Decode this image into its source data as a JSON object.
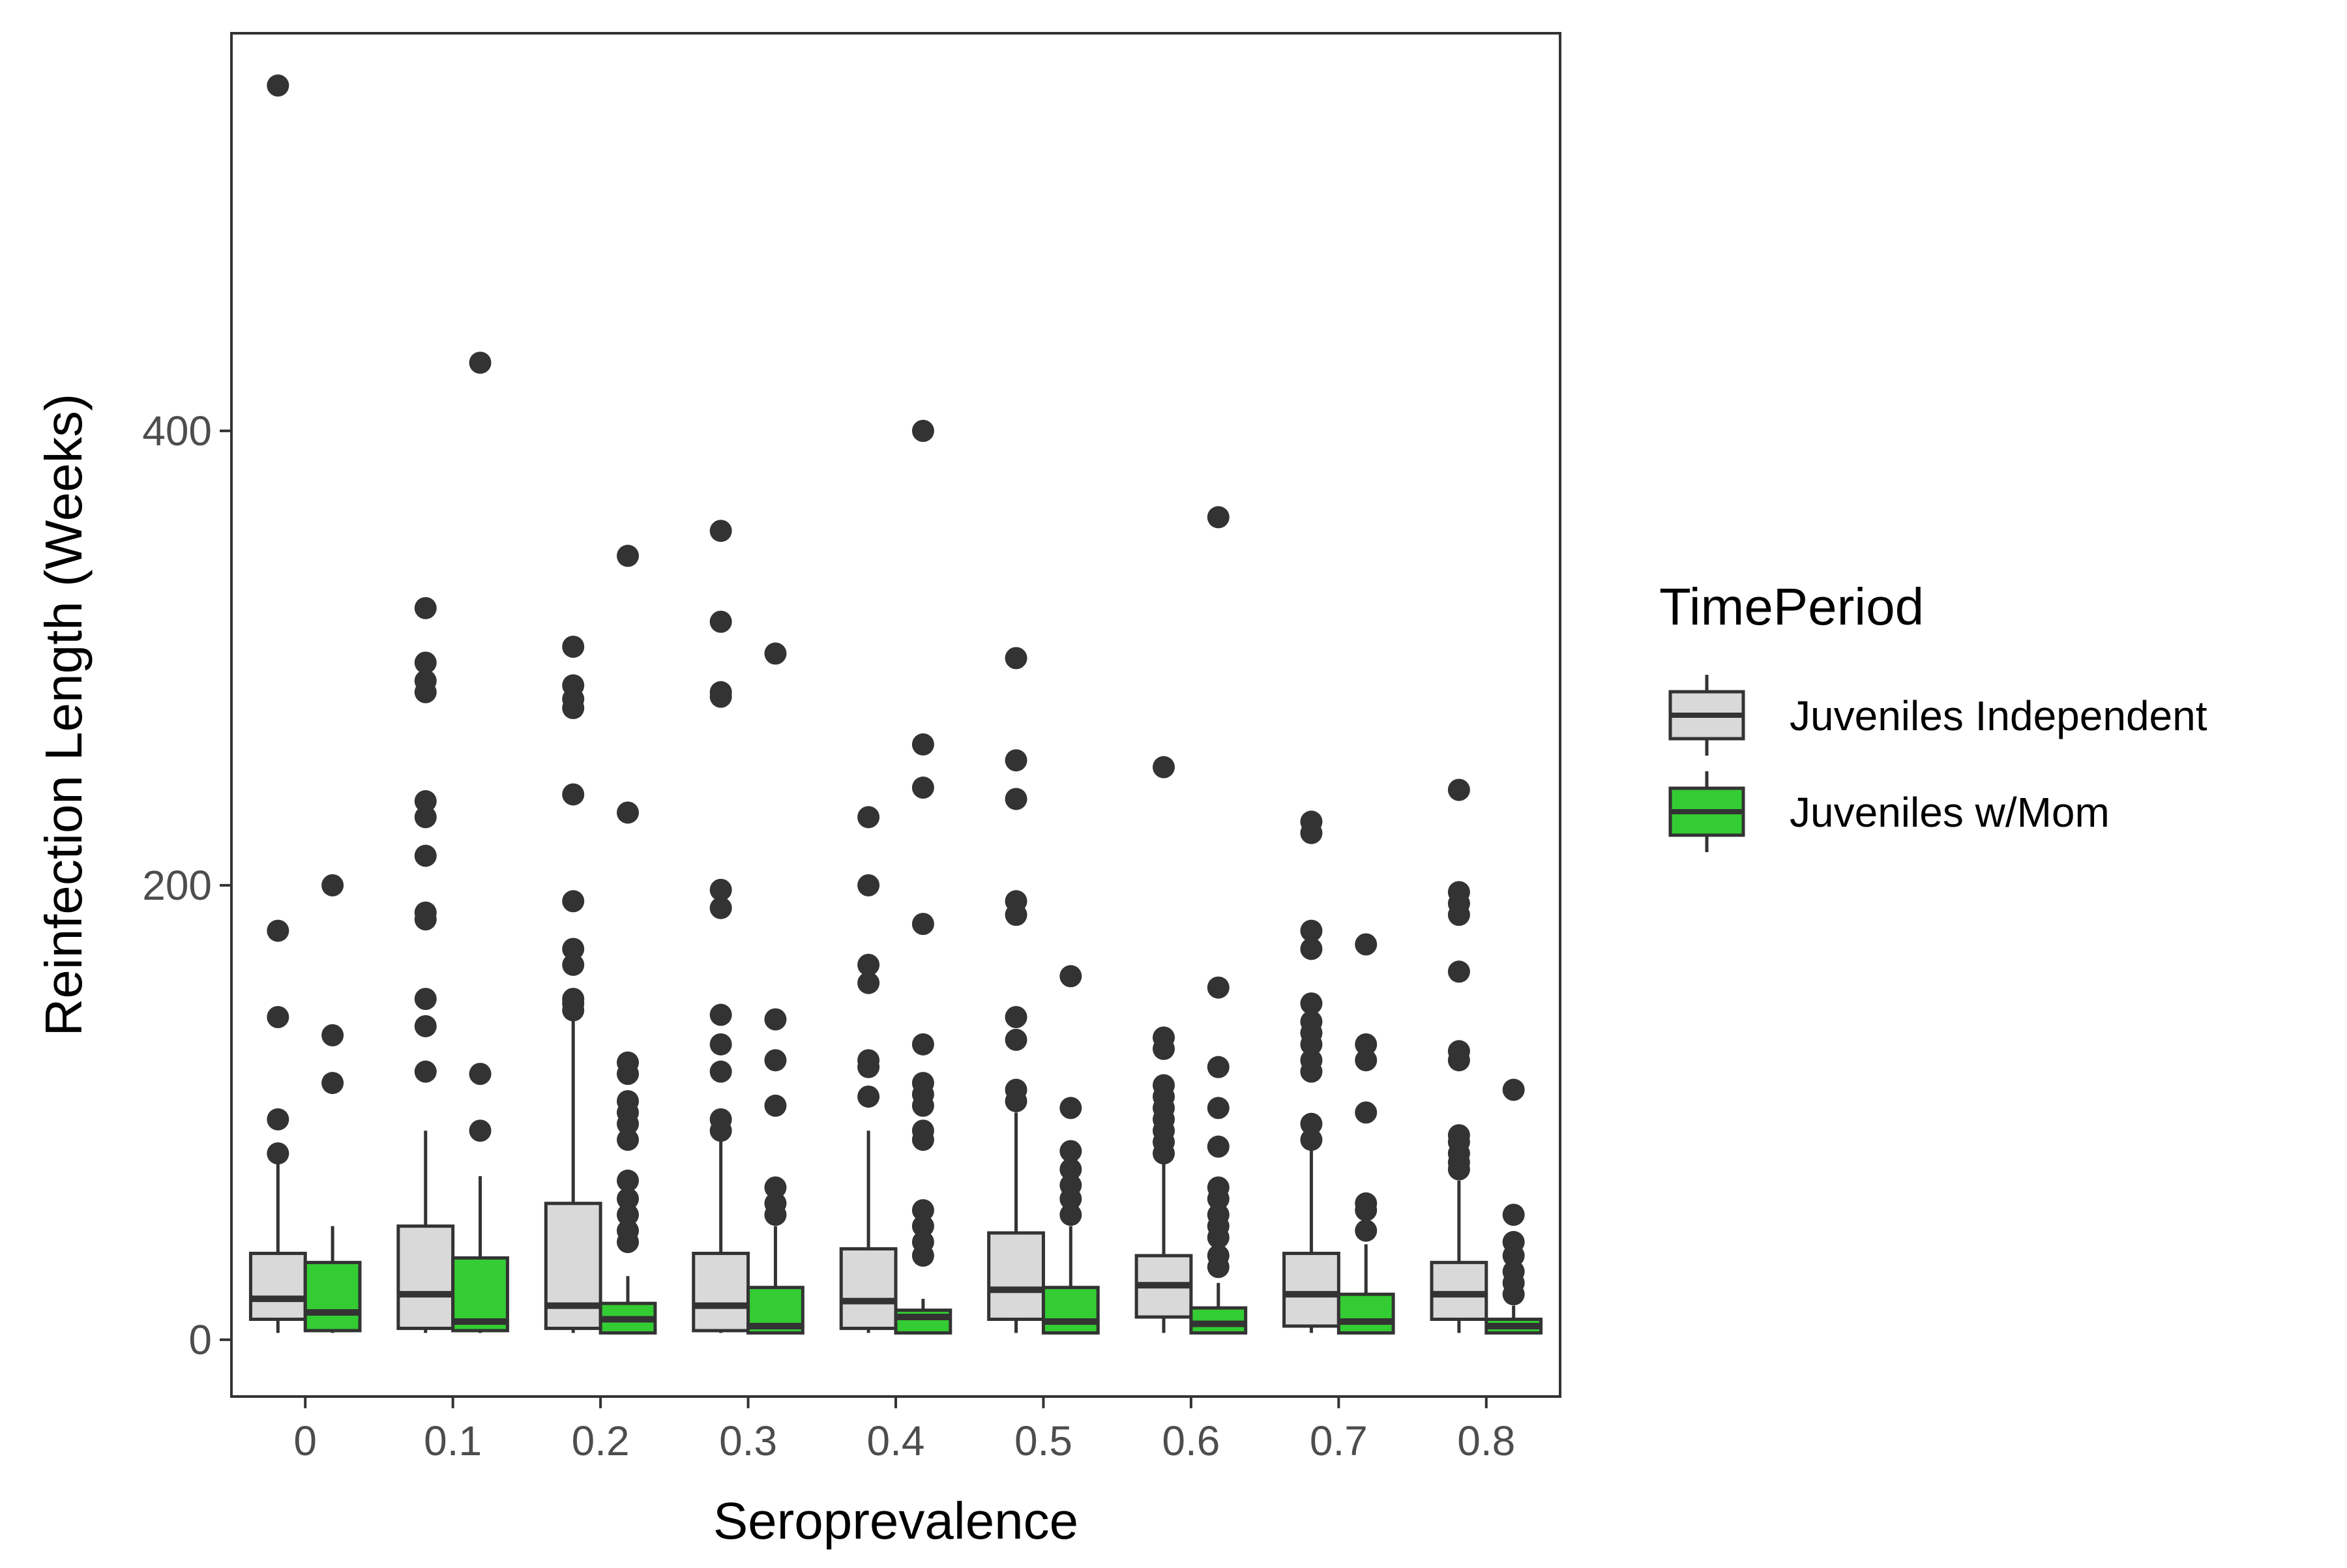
{
  "chart_data": {
    "type": "box",
    "xlabel": "Seroprevalence",
    "ylabel": "Reinfection Length (Weeks)",
    "categories": [
      "0",
      "0.1",
      "0.2",
      "0.3",
      "0.4",
      "0.5",
      "0.6",
      "0.7",
      "0.8"
    ],
    "ylim": [
      -25,
      575
    ],
    "yticks": [
      0,
      200,
      400
    ],
    "grid": false,
    "legend": {
      "title": "TimePeriod",
      "placement": "right"
    },
    "series": [
      {
        "name": "Juveniles Independent",
        "color": "#d9d9d9",
        "boxes": [
          {
            "min": 3,
            "q1": 9,
            "median": 18,
            "q3": 38,
            "max": 80,
            "outliers": [
              82,
              97,
              142,
              180,
              552
            ]
          },
          {
            "min": 3,
            "q1": 5,
            "median": 20,
            "q3": 50,
            "max": 92,
            "outliers": [
              118,
              138,
              150,
              185,
              188,
              213,
              230,
              237,
              285,
              290,
              298,
              322
            ]
          },
          {
            "min": 3,
            "q1": 5,
            "median": 15,
            "q3": 60,
            "max": 142,
            "outliers": [
              145,
              148,
              150,
              165,
              172,
              193,
              240,
              278,
              282,
              288,
              305
            ]
          },
          {
            "min": 3,
            "q1": 4,
            "median": 15,
            "q3": 38,
            "max": 90,
            "outliers": [
              92,
              97,
              118,
              130,
              143,
              190,
              198,
              283,
              285,
              316,
              356
            ]
          },
          {
            "min": 3,
            "q1": 5,
            "median": 17,
            "q3": 40,
            "max": 92,
            "outliers": [
              107,
              120,
              123,
              157,
              165,
              200,
              230
            ]
          },
          {
            "min": 3,
            "q1": 9,
            "median": 22,
            "q3": 47,
            "max": 100,
            "outliers": [
              105,
              110,
              132,
              142,
              187,
              193,
              238,
              255,
              300
            ]
          },
          {
            "min": 3,
            "q1": 10,
            "median": 24,
            "q3": 37,
            "max": 80,
            "outliers": [
              82,
              87,
              92,
              97,
              102,
              107,
              112,
              128,
              133,
              252
            ]
          },
          {
            "min": 3,
            "q1": 6,
            "median": 20,
            "q3": 38,
            "max": 85,
            "outliers": [
              88,
              95,
              118,
              123,
              130,
              135,
              140,
              148,
              172,
              180,
              223,
              228
            ]
          },
          {
            "min": 3,
            "q1": 9,
            "median": 20,
            "q3": 34,
            "max": 70,
            "outliers": [
              75,
              78,
              82,
              87,
              90,
              123,
              127,
              162,
              187,
              192,
              197,
              242
            ]
          }
        ]
      },
      {
        "name": "Juveniles w/Mom",
        "color": "#33cc33",
        "boxes": [
          {
            "min": 3,
            "q1": 4,
            "median": 12,
            "q3": 34,
            "max": 50,
            "outliers": [
              113,
              134,
              200
            ]
          },
          {
            "min": 3,
            "q1": 4,
            "median": 8,
            "q3": 36,
            "max": 72,
            "outliers": [
              92,
              117,
              430
            ]
          },
          {
            "min": 3,
            "q1": 3,
            "median": 9,
            "q3": 16,
            "max": 28,
            "outliers": [
              43,
              48,
              55,
              62,
              70,
              88,
              95,
              100,
              105,
              117,
              122,
              232,
              345
            ]
          },
          {
            "min": 3,
            "q1": 3,
            "median": 6,
            "q3": 23,
            "max": 50,
            "outliers": [
              55,
              60,
              67,
              103,
              123,
              141,
              302
            ]
          },
          {
            "min": 3,
            "q1": 3,
            "median": 10,
            "q3": 13,
            "max": 18,
            "outliers": [
              37,
              43,
              50,
              57,
              88,
              92,
              103,
              108,
              113,
              130,
              183,
              243,
              262,
              400
            ]
          },
          {
            "min": 3,
            "q1": 3,
            "median": 8,
            "q3": 23,
            "max": 50,
            "outliers": [
              55,
              62,
              68,
              75,
              83,
              102,
              160
            ]
          },
          {
            "min": 3,
            "q1": 3,
            "median": 7,
            "q3": 14,
            "max": 25,
            "outliers": [
              32,
              37,
              45,
              50,
              55,
              62,
              67,
              85,
              102,
              120,
              155,
              362
            ]
          },
          {
            "min": 3,
            "q1": 3,
            "median": 8,
            "q3": 20,
            "max": 42,
            "outliers": [
              48,
              57,
              60,
              100,
              123,
              130,
              174
            ]
          },
          {
            "min": 3,
            "q1": 3,
            "median": 6,
            "q3": 9,
            "max": 15,
            "outliers": [
              20,
              25,
              30,
              37,
              43,
              55,
              110
            ]
          }
        ]
      }
    ]
  }
}
